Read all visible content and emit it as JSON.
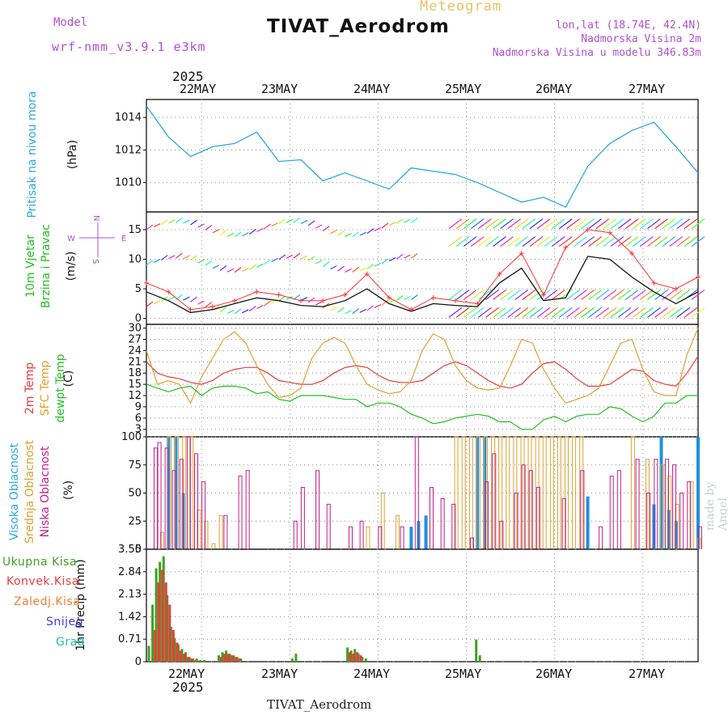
{
  "header": {
    "model_label": "Model",
    "model_value": "wrf-nmm_v3.9.1  e3km",
    "meteogram": "Meteogram",
    "station": "TIVAT_Aerodrom",
    "lonlat": "lon,lat (18.74E, 42.4N)",
    "altitude": "Nadmorska Visina 2m",
    "model_altitude": "Nadmorska Visina u modelu 346.83m"
  },
  "footer": {
    "station": "TIVAT_Aerodrom",
    "credit": "made by Angel"
  },
  "time_axis": {
    "year": "2025",
    "dates": [
      "22MAY",
      "23MAY",
      "24MAY",
      "25MAY",
      "26MAY",
      "27MAY"
    ]
  },
  "panels": {
    "pressure": {
      "label": "Pritisak na nivou mora",
      "unit": "(hPa)"
    },
    "wind": {
      "label1": "10m Vjetar",
      "label2": "Brzina i Pravac",
      "unit": "(m/s)",
      "compass": {
        "n": "N",
        "s": "S",
        "w": "W",
        "e": "E"
      }
    },
    "temp": {
      "label1": "2m Temp",
      "label2": "SFC Temp",
      "label3": "dewpt Temp",
      "unit": "(C)"
    },
    "cloud": {
      "label1": "Visoka Oblacnost",
      "label2": "Srednja Oblacnost",
      "label3": "Niska Oblacnost",
      "unit": "(%)"
    },
    "precip": {
      "unit_label": "1hr Precip (mm)",
      "legend": [
        "Ukupna Kisa",
        "Konvek.Kisa",
        "Zaledj.Kisa",
        "Snijeg",
        "Grad"
      ]
    }
  },
  "colors": {
    "pressure": "#29a8e0",
    "wind": "#111111",
    "gust": "#ff3030",
    "t2m": "#e83c3c",
    "tsfc": "#e0a030",
    "dewpt": "#20c020",
    "cloud_high": "#1e90e0",
    "cloud_mid": "#e0a030",
    "cloud_low": "#c0208a",
    "rain_total": "#40a020",
    "rain_conv": "#e83c3c",
    "rain_frz": "#f08030",
    "snow": "#4040e0",
    "hail": "#20c0b0"
  },
  "chart_data": [
    {
      "type": "line",
      "name": "pressure",
      "title": "Pritisak na nivou mora",
      "ylabel": "(hPa)",
      "x_hours": [
        0,
        6,
        12,
        18,
        24,
        30,
        36,
        42,
        48,
        54,
        60,
        66,
        72,
        78,
        84,
        90,
        96,
        102,
        108,
        114,
        120,
        126,
        132,
        138,
        144,
        150
      ],
      "values": [
        1014.7,
        1012.8,
        1011.6,
        1012.2,
        1012.4,
        1013.1,
        1011.3,
        1011.4,
        1010.1,
        1010.6,
        1010.1,
        1009.6,
        1010.9,
        1010.7,
        1010.5,
        1010.0,
        1009.4,
        1008.8,
        1009.1,
        1008.5,
        1011.0,
        1012.4,
        1013.2,
        1013.7,
        1012.2,
        1010.6
      ],
      "yticks": [
        1010,
        1012,
        1014
      ],
      "ylim": [
        1008.2,
        1015.1
      ]
    },
    {
      "type": "line",
      "name": "wind",
      "title": "10m Vjetar Brzina i Pravac",
      "ylabel": "(m/s)",
      "x_hours": [
        0,
        6,
        12,
        18,
        24,
        30,
        36,
        42,
        48,
        54,
        60,
        66,
        72,
        78,
        84,
        90,
        96,
        102,
        108,
        114,
        120,
        126,
        132,
        138,
        144,
        150
      ],
      "speed": [
        4.5,
        3.0,
        1.0,
        1.5,
        2.5,
        3.5,
        3.0,
        2.2,
        2.0,
        3.0,
        5.0,
        2.5,
        1.2,
        2.5,
        2.2,
        2.0,
        6.0,
        8.5,
        3.0,
        3.5,
        10.5,
        10.0,
        7.0,
        4.5,
        2.5,
        4.5
      ],
      "gust": [
        6.0,
        4.5,
        1.5,
        2.0,
        3.0,
        4.5,
        4.0,
        3.0,
        3.0,
        4.0,
        7.5,
        3.5,
        1.5,
        3.5,
        3.0,
        2.5,
        7.5,
        11.0,
        4.0,
        12.0,
        15.0,
        14.5,
        11.0,
        6.0,
        5.0,
        7.0
      ],
      "yticks": [
        0,
        5,
        10,
        15
      ],
      "ylim": [
        -1,
        18
      ]
    },
    {
      "type": "line",
      "name": "temperature",
      "title": "Temperature",
      "ylabel": "(C)",
      "x_hours": [
        0,
        3,
        6,
        9,
        12,
        15,
        18,
        21,
        24,
        27,
        30,
        33,
        36,
        39,
        42,
        45,
        48,
        51,
        54,
        57,
        60,
        63,
        66,
        69,
        72,
        75,
        78,
        81,
        84,
        87,
        90,
        93,
        96,
        99,
        102,
        105,
        108,
        111,
        114,
        117,
        120,
        123,
        126,
        129,
        132,
        135,
        138,
        141,
        144,
        147,
        150
      ],
      "series": [
        {
          "name": "2m Temp",
          "values": [
            21,
            18,
            17,
            16.5,
            15.5,
            15,
            16,
            18,
            19,
            19.5,
            19.5,
            18,
            16,
            15.5,
            15,
            15,
            16,
            18,
            19.5,
            20,
            19.5,
            17.5,
            16,
            15.5,
            15.5,
            16,
            18,
            20,
            21,
            20,
            18,
            16,
            14.5,
            14,
            15,
            18,
            20.5,
            21,
            19,
            16.5,
            14.5,
            14.5,
            15,
            17,
            19,
            18.5,
            16,
            15,
            14.5,
            18,
            22.5
          ]
        },
        {
          "name": "SFC Temp",
          "values": [
            24,
            15,
            16,
            15,
            10,
            17,
            22,
            27,
            29,
            26,
            20,
            15,
            11.5,
            12,
            14,
            22,
            26,
            27.5,
            26,
            20,
            15,
            13.5,
            12.5,
            13,
            16,
            24,
            28.5,
            27,
            20,
            16,
            14,
            13.5,
            14,
            20,
            27,
            26,
            19,
            14,
            10,
            11,
            12,
            14,
            20,
            26,
            27,
            19,
            13,
            12,
            12,
            23,
            30
          ]
        },
        {
          "name": "dewpt Temp",
          "values": [
            15,
            14,
            13,
            14,
            14.5,
            12,
            14,
            14.5,
            14.5,
            14,
            12.5,
            13,
            11,
            10.5,
            12,
            12,
            12,
            11.5,
            11,
            11,
            9,
            10,
            10,
            9,
            7,
            6,
            4.5,
            5,
            6,
            6.5,
            7,
            6.5,
            5,
            5,
            3,
            3,
            5.5,
            6.5,
            5,
            6.5,
            7,
            7,
            9,
            8.5,
            6.5,
            5,
            6.5,
            10,
            10,
            12,
            12
          ]
        }
      ],
      "yticks": [
        3,
        6,
        9,
        12,
        15,
        18,
        21,
        24,
        27,
        30
      ],
      "ylim": [
        1,
        31
      ]
    },
    {
      "type": "bar",
      "name": "cloud",
      "title": "Oblacnost",
      "ylabel": "(%)",
      "series": [
        {
          "name": "Visoka Oblacnost",
          "x_hours": [
            6,
            8,
            10,
            72,
            74,
            76,
            90,
            92,
            120,
            138,
            140,
            142,
            144,
            150
          ],
          "values": [
            100,
            100,
            50,
            20,
            25,
            30,
            100,
            100,
            47,
            40,
            100,
            35,
            25,
            100
          ]
        },
        {
          "name": "Srednja Oblacnost",
          "x_hours": [
            4,
            6,
            8,
            10,
            12,
            14,
            16,
            18,
            20,
            60,
            64,
            68,
            84,
            86,
            88,
            90,
            92,
            94,
            96,
            98,
            100,
            102,
            104,
            106,
            108,
            110,
            112,
            114,
            116,
            118,
            132,
            136,
            140,
            142,
            144,
            148,
            150
          ],
          "values": [
            15,
            100,
            100,
            100,
            100,
            35,
            25,
            5,
            30,
            20,
            50,
            30,
            100,
            100,
            100,
            100,
            100,
            100,
            100,
            100,
            100,
            100,
            100,
            100,
            100,
            100,
            100,
            100,
            100,
            100,
            100,
            80,
            75,
            65,
            40,
            60,
            10
          ]
        },
        {
          "name": "Niska Oblacnost",
          "x_hours": [
            2,
            3,
            5,
            7,
            9,
            11,
            13,
            15,
            21,
            25,
            27,
            40,
            42,
            46,
            49,
            55,
            58,
            63,
            69,
            73,
            77,
            80,
            83,
            88,
            92,
            94,
            96,
            100,
            102,
            104,
            106,
            113,
            118,
            123,
            126,
            128,
            133,
            136,
            138,
            141,
            143,
            145,
            147,
            150
          ],
          "values": [
            90,
            95,
            90,
            70,
            80,
            100,
            85,
            60,
            30,
            65,
            70,
            25,
            55,
            70,
            40,
            20,
            25,
            20,
            20,
            100,
            55,
            45,
            40,
            10,
            60,
            85,
            25,
            50,
            75,
            70,
            55,
            45,
            70,
            20,
            65,
            70,
            80,
            50,
            80,
            80,
            75,
            50,
            60,
            20
          ]
        }
      ],
      "yticks": [
        0,
        25,
        50,
        75,
        100
      ],
      "ylim": [
        0,
        100
      ]
    },
    {
      "type": "bar",
      "name": "precipitation",
      "title": "1hr Precip",
      "ylabel": "1hr Precip (mm)",
      "series": [
        {
          "name": "Ukupna Kisa",
          "x_hours": [
            1,
            2,
            3,
            4,
            5,
            6,
            7,
            8,
            9,
            10,
            11,
            12,
            13,
            14,
            15,
            16,
            20,
            21,
            22,
            23,
            24,
            25,
            26,
            40,
            41,
            55,
            56,
            57,
            58,
            59,
            60,
            90,
            91
          ],
          "values": [
            0.5,
            1.8,
            2.95,
            3.15,
            3.33,
            2.1,
            1.1,
            0.75,
            0.55,
            0.4,
            0.3,
            0.15,
            0.1,
            0.1,
            0.05,
            0.05,
            0.2,
            0.3,
            0.35,
            0.25,
            0.2,
            0.15,
            0.1,
            0.1,
            0.25,
            0.45,
            0.35,
            0.4,
            0.25,
            0.15,
            0.1,
            0.7,
            0.2
          ]
        },
        {
          "name": "Konvek.Kisa",
          "x_hours": [
            2,
            3,
            4,
            5,
            6,
            7,
            8,
            9,
            10,
            11,
            12,
            13,
            20,
            21,
            22,
            23,
            24,
            25,
            55,
            56,
            57,
            58
          ],
          "values": [
            1.0,
            2.5,
            2.9,
            2.5,
            1.8,
            1.0,
            0.6,
            0.35,
            0.25,
            0.15,
            0.1,
            0.05,
            0.15,
            0.25,
            0.25,
            0.2,
            0.15,
            0.1,
            0.3,
            0.25,
            0.3,
            0.2
          ]
        }
      ],
      "yticks": [
        0,
        0.71,
        1.42,
        2.13,
        2.84,
        3.55
      ],
      "ylim": [
        0,
        3.55
      ]
    }
  ]
}
